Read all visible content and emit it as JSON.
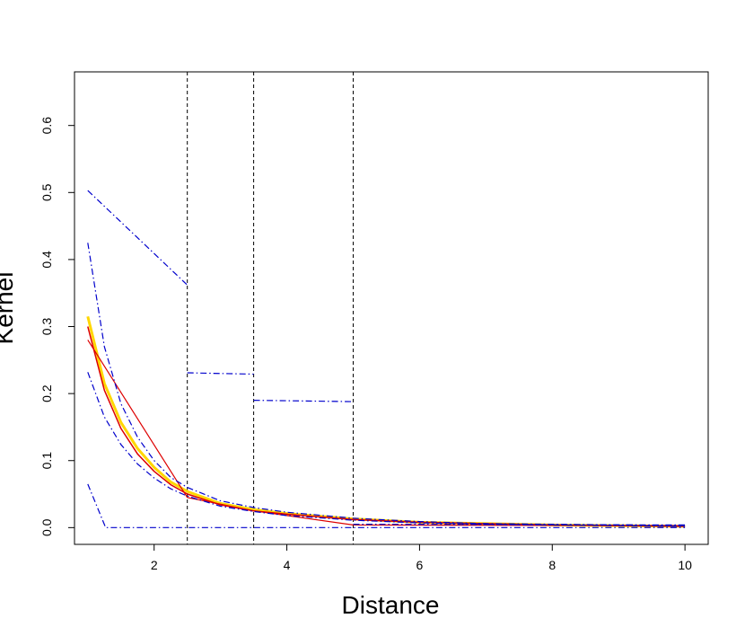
{
  "chart_data": {
    "type": "line",
    "title": "",
    "xlabel": "Distance",
    "ylabel": "Kernel",
    "xlim": [
      0.8,
      10.35
    ],
    "ylim": [
      -0.025,
      0.68
    ],
    "x_ticks": [
      2,
      4,
      6,
      8,
      10
    ],
    "x_tick_labels": [
      "2",
      "4",
      "6",
      "8",
      "10"
    ],
    "y_ticks": [
      0.0,
      0.1,
      0.2,
      0.3,
      0.4,
      0.5,
      0.6
    ],
    "y_tick_labels": [
      "0.0",
      "0.1",
      "0.2",
      "0.3",
      "0.4",
      "0.5",
      "0.6"
    ],
    "grid": false,
    "legend": "none",
    "vlines": [
      2.5,
      3.5,
      5.0
    ],
    "series": [
      {
        "style": "solid",
        "color": "#ffd700",
        "width": 3,
        "points": [
          [
            1.0,
            0.315
          ],
          [
            1.25,
            0.215
          ],
          [
            1.5,
            0.157
          ],
          [
            1.75,
            0.118
          ],
          [
            2.0,
            0.09
          ],
          [
            2.25,
            0.068
          ],
          [
            2.5,
            0.054
          ],
          [
            3.0,
            0.036
          ],
          [
            3.5,
            0.027
          ],
          [
            4.0,
            0.021
          ],
          [
            5.0,
            0.013
          ],
          [
            6.0,
            0.008
          ],
          [
            7.0,
            0.006
          ],
          [
            8.0,
            0.004
          ],
          [
            9.0,
            0.003
          ],
          [
            10.0,
            0.002
          ]
        ]
      },
      {
        "style": "solid",
        "color": "#dd0000",
        "width": 1.5,
        "points": [
          [
            1.0,
            0.3
          ],
          [
            1.25,
            0.205
          ],
          [
            1.5,
            0.148
          ],
          [
            1.75,
            0.11
          ],
          [
            2.0,
            0.084
          ],
          [
            2.25,
            0.064
          ],
          [
            2.5,
            0.05
          ],
          [
            3.0,
            0.034
          ],
          [
            3.5,
            0.025
          ],
          [
            4.0,
            0.02
          ],
          [
            5.0,
            0.012
          ],
          [
            6.0,
            0.008
          ],
          [
            7.0,
            0.006
          ],
          [
            8.0,
            0.004
          ],
          [
            9.0,
            0.003
          ],
          [
            10.0,
            0.002
          ]
        ]
      },
      {
        "style": "solid",
        "color": "#dd0000",
        "width": 1.2,
        "points": [
          [
            1.0,
            0.28
          ],
          [
            2.5,
            0.045
          ],
          [
            3.5,
            0.025
          ],
          [
            5.0,
            0.004
          ],
          [
            10.0,
            0.003
          ]
        ]
      },
      {
        "style": "dashdot",
        "color": "#0000cc",
        "width": 1.2,
        "points": [
          [
            1.0,
            0.425
          ],
          [
            1.25,
            0.27
          ],
          [
            1.5,
            0.185
          ],
          [
            1.75,
            0.135
          ],
          [
            2.0,
            0.1
          ],
          [
            2.25,
            0.075
          ],
          [
            2.5,
            0.06
          ],
          [
            3.0,
            0.04
          ],
          [
            3.5,
            0.03
          ],
          [
            4.0,
            0.023
          ],
          [
            5.0,
            0.014
          ],
          [
            6.0,
            0.009
          ],
          [
            7.0,
            0.006
          ],
          [
            8.0,
            0.005
          ],
          [
            9.0,
            0.004
          ],
          [
            10.0,
            0.003
          ]
        ]
      },
      {
        "style": "dashdot",
        "color": "#0000cc",
        "width": 1.2,
        "points": [
          [
            1.0,
            0.232
          ],
          [
            1.25,
            0.165
          ],
          [
            1.5,
            0.124
          ],
          [
            1.75,
            0.095
          ],
          [
            2.0,
            0.074
          ],
          [
            2.25,
            0.058
          ],
          [
            2.5,
            0.047
          ],
          [
            3.0,
            0.032
          ],
          [
            3.5,
            0.024
          ],
          [
            4.0,
            0.018
          ],
          [
            5.0,
            0.011
          ],
          [
            6.0,
            0.007
          ],
          [
            7.0,
            0.005
          ],
          [
            8.0,
            0.004
          ],
          [
            9.0,
            0.003
          ],
          [
            10.0,
            0.002
          ]
        ]
      },
      {
        "style": "dashdot",
        "color": "#0000cc",
        "width": 1.2,
        "points": [
          [
            1.0,
            0.503
          ],
          [
            2.5,
            0.362
          ]
        ]
      },
      {
        "style": "dashdot",
        "color": "#0000cc",
        "width": 1.2,
        "points": [
          [
            2.5,
            0.231
          ],
          [
            3.5,
            0.229
          ]
        ]
      },
      {
        "style": "dashdot",
        "color": "#0000cc",
        "width": 1.2,
        "points": [
          [
            3.5,
            0.19
          ],
          [
            5.0,
            0.188
          ]
        ]
      },
      {
        "style": "dashdot",
        "color": "#0000cc",
        "width": 1.2,
        "points": [
          [
            1.0,
            0.065
          ],
          [
            1.27,
            0.0
          ],
          [
            10.0,
            0.0
          ]
        ]
      },
      {
        "style": "dashdot",
        "color": "#0000cc",
        "width": 1.2,
        "points": [
          [
            5.0,
            0.005
          ],
          [
            10.0,
            0.004
          ]
        ]
      }
    ]
  }
}
